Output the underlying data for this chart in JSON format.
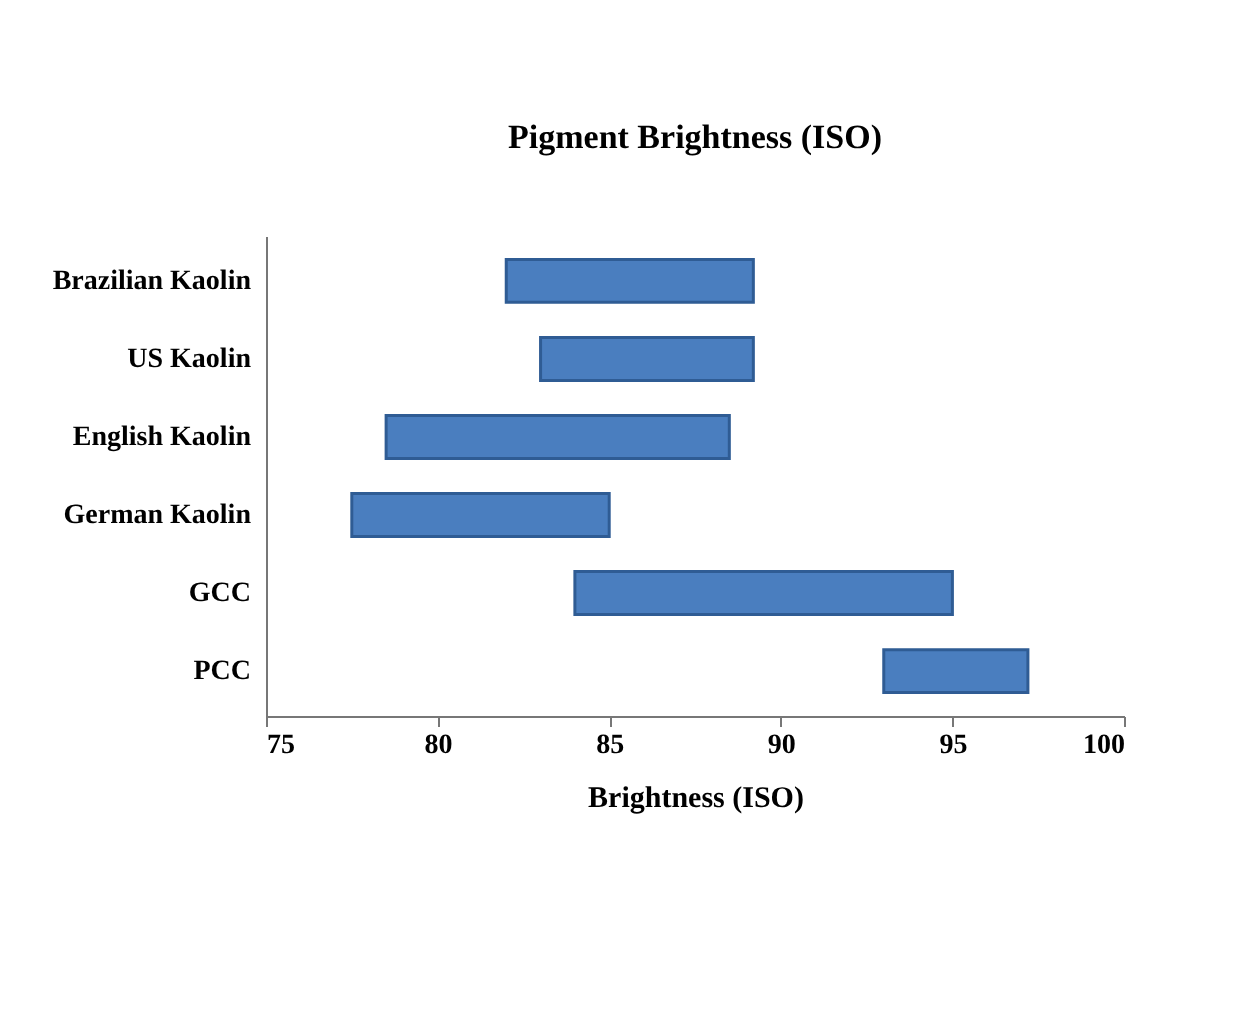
{
  "chart_data": {
    "type": "bar",
    "orientation": "horizontal",
    "title": "Pigment Brightness (ISO)",
    "xlabel": "Brightness (ISO)",
    "categories": [
      "Brazilian Kaolin",
      "US Kaolin",
      "English Kaolin",
      "German Kaolin",
      "GCC",
      "PCC"
    ],
    "base": [
      82,
      83,
      78.5,
      77.5,
      84,
      93
    ],
    "values": [
      7.2,
      6.2,
      10,
      7.5,
      11,
      4.2
    ],
    "color": "#4a7ebf",
    "xlim": [
      75,
      100
    ],
    "xticks": [
      75,
      80,
      85,
      90,
      95,
      100
    ]
  }
}
